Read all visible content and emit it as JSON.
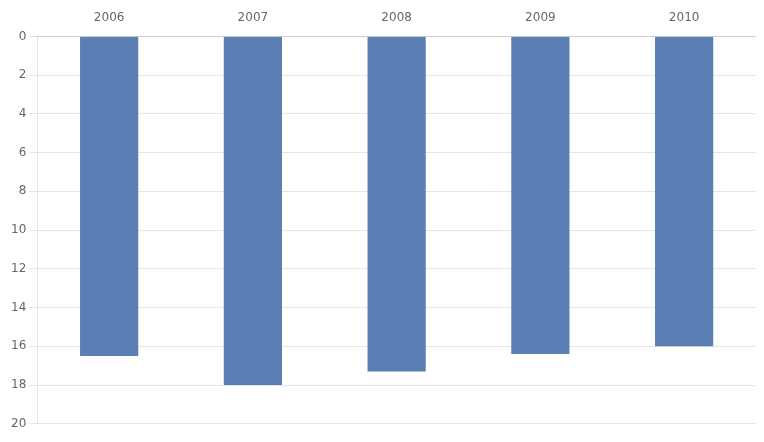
{
  "chart_data": {
    "type": "bar",
    "categories": [
      "2006",
      "2007",
      "2008",
      "2009",
      "2010"
    ],
    "values": [
      16.5,
      18.0,
      17.3,
      16.4,
      16.0
    ],
    "color": "#5b7fb5",
    "ylim": [
      20,
      0
    ],
    "yticks": [
      0,
      2,
      4,
      6,
      8,
      10,
      12,
      14,
      16,
      18,
      20
    ],
    "grid": true
  }
}
